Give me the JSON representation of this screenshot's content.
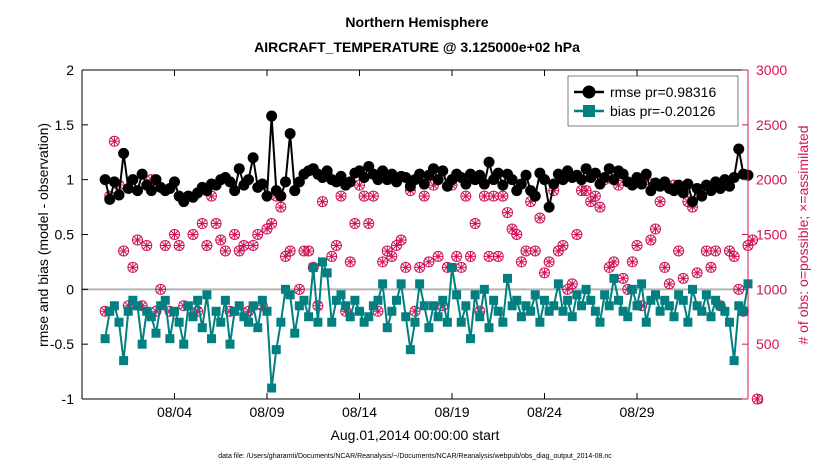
{
  "chart_data": {
    "type": "line",
    "title_line1": "Northern Hemisphere",
    "title_line2": "AIRCRAFT_TEMPERATURE @ 3.125000e+02 hPa",
    "ylabel_left": "rmse and bias (model - observation)",
    "ylabel_right": "# of obs: o=possible; ×=assimilated",
    "xlabel": "Aug.01,2014 00:00:00 start",
    "footnote": "data file: /Users/gharamti/Documents/NCAR/Reanalysis/~/Documents/NCAR/Reanalysis/webpub/obs_diag_output_2014-08.nc",
    "ylim_left": [
      -1,
      2
    ],
    "ylim_right": [
      0,
      3000
    ],
    "xlim_days": [
      0,
      36
    ],
    "yticks_left": [
      "-1",
      "-0.5",
      "0",
      "0.5",
      "1",
      "1.5",
      "2"
    ],
    "yticks_right": [
      "0",
      "500",
      "1000",
      "1500",
      "2000",
      "2500",
      "3000"
    ],
    "xticks": [
      "08/04",
      "08/09",
      "08/14",
      "08/19",
      "08/24",
      "08/29"
    ],
    "xtick_days": [
      5,
      10,
      15,
      20,
      25,
      30
    ],
    "colors": {
      "rmse": "#000000",
      "bias": "#008080",
      "obs": "#d0145a",
      "zero": "#b4b4b4"
    },
    "legend": [
      {
        "name": "rmse pr=0.98316",
        "marker": "circle",
        "color": "#000000"
      },
      {
        "name": "bias pr=-0.20126",
        "marker": "square",
        "color": "#008080"
      }
    ],
    "start_day": 1.25,
    "step_days": 0.25,
    "rmse": [
      1.0,
      0.82,
      0.98,
      0.86,
      1.24,
      0.92,
      1.0,
      0.9,
      1.05,
      0.95,
      0.9,
      1.0,
      0.93,
      0.9,
      0.92,
      0.98,
      0.85,
      0.8,
      0.85,
      0.84,
      0.88,
      0.93,
      0.9,
      0.96,
      0.95,
      1.0,
      1.02,
      0.98,
      0.9,
      1.1,
      0.95,
      1.0,
      1.2,
      0.93,
      0.96,
      0.85,
      1.58,
      0.9,
      0.85,
      0.98,
      1.42,
      0.9,
      0.98,
      1.05,
      1.08,
      1.1,
      1.05,
      1.02,
      1.08,
      1.0,
      0.98,
      1.03,
      0.95,
      0.98,
      1.06,
      1.08,
      1.02,
      1.12,
      1.05,
      1.0,
      1.08,
      1.0,
      1.05,
      0.98,
      1.03,
      1.02,
      0.94,
      1.0,
      1.05,
      0.96,
      1.04,
      1.1,
      1.0,
      1.08,
      0.94,
      1.0,
      1.05,
      1.02,
      0.96,
      1.05,
      1.0,
      1.04,
      0.96,
      1.16,
      1.0,
      1.06,
      0.95,
      1.05,
      1.0,
      0.9,
      0.96,
      1.04,
      0.9,
      0.85,
      1.06,
      1.0,
      0.75,
      0.96,
      1.05,
      1.0,
      1.08,
      1.02,
      1.04,
      1.0,
      1.1,
      1.02,
      1.06,
      0.96,
      1.02,
      1.1,
      1.0,
      1.08,
      1.05,
      0.98,
      0.95,
      1.02,
      0.96,
      1.05,
      0.9,
      0.97,
      0.94,
      0.98,
      0.92,
      0.9,
      0.95,
      0.88,
      0.96,
      0.8,
      0.92,
      0.85,
      0.95,
      0.9,
      0.98,
      0.92,
      1.0,
      0.94,
      1.02,
      1.28,
      1.05,
      1.04
    ],
    "bias": [
      -0.45,
      -0.2,
      -0.15,
      -0.3,
      -0.65,
      -0.2,
      -0.1,
      -0.15,
      -0.5,
      -0.2,
      -0.25,
      -0.4,
      -0.15,
      -0.1,
      -0.45,
      -0.2,
      -0.3,
      -0.5,
      -0.15,
      -0.25,
      -0.1,
      -0.35,
      -0.05,
      -0.45,
      -0.2,
      -0.3,
      -0.1,
      -0.5,
      -0.2,
      -0.15,
      -0.25,
      -0.3,
      -0.15,
      -0.35,
      -0.1,
      -0.2,
      -0.9,
      -0.55,
      -0.3,
      0.0,
      -0.05,
      -0.4,
      -0.15,
      -0.1,
      -0.25,
      0.2,
      -0.3,
      0.25,
      0.15,
      -0.3,
      -0.1,
      -0.05,
      -0.15,
      -0.25,
      -0.1,
      -0.2,
      -0.3,
      -0.25,
      -0.15,
      -0.1,
      0.05,
      -0.35,
      -0.2,
      -0.1,
      0.05,
      -0.25,
      -0.55,
      -0.3,
      0.05,
      -0.15,
      -0.35,
      -0.15,
      -0.25,
      -0.1,
      -0.3,
      0.2,
      -0.05,
      -0.3,
      -0.15,
      -0.45,
      -0.05,
      -0.25,
      0.0,
      -0.35,
      -0.1,
      -0.2,
      -0.3,
      0.1,
      -0.15,
      -0.1,
      -0.25,
      -0.15,
      -0.2,
      -0.05,
      -0.3,
      -0.1,
      -0.2,
      -0.15,
      0.05,
      -0.2,
      -0.1,
      -0.25,
      -0.05,
      -0.15,
      0.0,
      -0.1,
      -0.2,
      -0.3,
      -0.05,
      -0.15,
      0.1,
      -0.1,
      -0.2,
      -0.25,
      0.0,
      -0.15,
      0.05,
      -0.3,
      -0.1,
      -0.05,
      -0.2,
      -0.1,
      -0.15,
      -0.25,
      -0.05,
      -0.1,
      -0.3,
      0.0,
      -0.15,
      -0.2,
      -0.05,
      -0.25,
      -0.1,
      -0.15,
      -0.2,
      -0.3,
      -0.65,
      -0.15,
      -0.2,
      0.05
    ],
    "obs_possible": [
      800,
      1850,
      2350,
      1950,
      1350,
      850,
      1200,
      1450,
      850,
      1400,
      2000,
      800,
      1000,
      1400,
      800,
      1500,
      1400,
      850,
      1850,
      1500,
      800,
      1600,
      1400,
      1850,
      1600,
      1450,
      1350,
      800,
      1500,
      1350,
      1400,
      800,
      1400,
      1500,
      850,
      1550,
      1600,
      1850,
      1750,
      1300,
      1350,
      1900,
      1000,
      1350,
      1350,
      1200,
      850,
      1800,
      2050,
      1300,
      1400,
      1850,
      800,
      1250,
      1600,
      1950,
      1850,
      1600,
      1850,
      800,
      1250,
      1350,
      1300,
      1400,
      1450,
      1200,
      1900,
      800,
      1200,
      1850,
      1250,
      1950,
      1300,
      850,
      1200,
      1950,
      1300,
      1200,
      1850,
      1300,
      1600,
      800,
      1850,
      1300,
      1850,
      1300,
      1850,
      1700,
      1550,
      1500,
      1250,
      1350,
      1800,
      1350,
      1650,
      1150,
      1250,
      1900,
      1350,
      1400,
      1000,
      1050,
      1500,
      1900,
      1900,
      1800,
      1850,
      1750,
      2000,
      1200,
      1250,
      1950,
      1100,
      1000,
      1250,
      1400,
      850,
      2000,
      1450,
      1550,
      1800,
      1200,
      1050,
      1950,
      1350,
      1100,
      1800,
      1750,
      1150,
      1900,
      1350,
      1200,
      1350,
      850,
      1950,
      1350,
      1300,
      1000,
      800,
      1400,
      1450,
      0
    ],
    "obs_assimilated": [
      800,
      1850,
      2350,
      1950,
      1350,
      850,
      1200,
      1450,
      850,
      1400,
      2000,
      800,
      1000,
      1400,
      800,
      1500,
      1400,
      850,
      1850,
      1500,
      800,
      1600,
      1400,
      1850,
      1600,
      1450,
      1350,
      800,
      1500,
      1350,
      1400,
      800,
      1400,
      1500,
      850,
      1550,
      1600,
      1850,
      1750,
      1300,
      1350,
      1900,
      1000,
      1350,
      1350,
      1200,
      850,
      1800,
      2050,
      1300,
      1400,
      1850,
      800,
      1250,
      1600,
      1950,
      1850,
      1600,
      1850,
      800,
      1250,
      1350,
      1300,
      1400,
      1450,
      1200,
      1900,
      800,
      1200,
      1850,
      1250,
      1950,
      1300,
      850,
      1200,
      1950,
      1300,
      1200,
      1850,
      1300,
      1600,
      800,
      1850,
      1300,
      1850,
      1300,
      1850,
      1700,
      1550,
      1500,
      1250,
      1350,
      1800,
      1350,
      1650,
      1150,
      1250,
      1900,
      1350,
      1400,
      1000,
      1050,
      1500,
      1900,
      1900,
      1800,
      1850,
      1750,
      2000,
      1200,
      1250,
      1950,
      1100,
      1000,
      1250,
      1400,
      850,
      2000,
      1450,
      1550,
      1800,
      1200,
      1050,
      1950,
      1350,
      1100,
      1800,
      1750,
      1150,
      1900,
      1350,
      1200,
      1350,
      850,
      1950,
      1350,
      1300,
      1000,
      800,
      1400,
      1450,
      0
    ]
  }
}
